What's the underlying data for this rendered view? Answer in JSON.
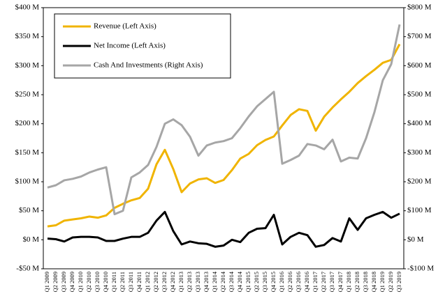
{
  "chart_data": {
    "type": "line",
    "categories": [
      "Q1 2009",
      "Q2 2009",
      "Q3 2009",
      "Q4 2009",
      "Q1 2010",
      "Q2 2010",
      "Q3 2010",
      "Q4 2010",
      "Q1 2011",
      "Q2 2011",
      "Q3 2011",
      "Q4 2011",
      "Q1 2012",
      "Q2 2012",
      "Q3 2012",
      "Q4 2012",
      "Q1 2013",
      "Q2 2013",
      "Q3 2013",
      "Q4 2013",
      "Q1 2014",
      "Q2 2014",
      "Q3 2014",
      "Q4 2014",
      "Q1 2015",
      "Q2 2015",
      "Q3 2015",
      "Q4 2015",
      "Q1 2016",
      "Q2 2016",
      "Q3 2016",
      "Q4 2016",
      "Q1 2017",
      "Q2 2017",
      "Q3 2017",
      "Q4 2017",
      "Q1 2018",
      "Q2 2018",
      "Q3 2018",
      "Q4 2018",
      "Q1 2019",
      "Q2 2019",
      "Q3 2019"
    ],
    "series": [
      {
        "name": "Revenue (Left Axis)",
        "color": "#f0b400",
        "values": [
          23,
          25,
          33,
          35,
          37,
          40,
          38,
          42,
          55,
          62,
          68,
          72,
          88,
          130,
          155,
          122,
          82,
          97,
          104,
          106,
          98,
          103,
          120,
          140,
          148,
          163,
          172,
          178,
          197,
          215,
          225,
          222,
          188,
          212,
          228,
          242,
          255,
          270,
          282,
          293,
          305,
          310,
          337
        ]
      },
      {
        "name": "Net Income (Left Axis)",
        "color": "#000000",
        "values": [
          2,
          1,
          -3,
          4,
          5,
          5,
          4,
          -2,
          -2,
          2,
          5,
          5,
          12,
          33,
          48,
          15,
          -8,
          -3,
          -6,
          -7,
          -12,
          -10,
          0,
          -4,
          12,
          19,
          20,
          43,
          -8,
          5,
          12,
          8,
          -12,
          -9,
          3,
          -3,
          37,
          17,
          37,
          43,
          48,
          38,
          45
        ]
      },
      {
        "name": "Cash And Investments (Right Axis)",
        "color": "#a6a6a6",
        "axis": "y2",
        "values": [
          180,
          188,
          205,
          210,
          218,
          232,
          242,
          250,
          88,
          100,
          215,
          232,
          258,
          320,
          400,
          415,
          395,
          355,
          290,
          325,
          335,
          340,
          350,
          385,
          425,
          460,
          485,
          510,
          262,
          275,
          290,
          330,
          325,
          312,
          345,
          270,
          283,
          280,
          350,
          440,
          550,
          605,
          742
        ]
      }
    ],
    "ylim": [
      -50,
      400
    ],
    "yticks": [
      {
        "value": -50,
        "label": "-$50 M"
      },
      {
        "value": 0,
        "label": "$0 M"
      },
      {
        "value": 50,
        "label": "$50 M"
      },
      {
        "value": 100,
        "label": "$100 M"
      },
      {
        "value": 150,
        "label": "$150 M"
      },
      {
        "value": 200,
        "label": "$200 M"
      },
      {
        "value": 250,
        "label": "$250 M"
      },
      {
        "value": 300,
        "label": "$300 M"
      },
      {
        "value": 350,
        "label": "$350 M"
      },
      {
        "value": 400,
        "label": "$400 M"
      }
    ],
    "y2lim": [
      -100,
      800
    ],
    "y2ticks": [
      {
        "value": -100,
        "label": "-$100 M"
      },
      {
        "value": 0,
        "label": "$0 M"
      },
      {
        "value": 100,
        "label": "$100 M"
      },
      {
        "value": 200,
        "label": "$200 M"
      },
      {
        "value": 300,
        "label": "$300 M"
      },
      {
        "value": 400,
        "label": "$400 M"
      },
      {
        "value": 500,
        "label": "$500 M"
      },
      {
        "value": 600,
        "label": "$600 M"
      },
      {
        "value": 700,
        "label": "$700 M"
      },
      {
        "value": 800,
        "label": "$800 M"
      }
    ],
    "legend": "upper left"
  }
}
